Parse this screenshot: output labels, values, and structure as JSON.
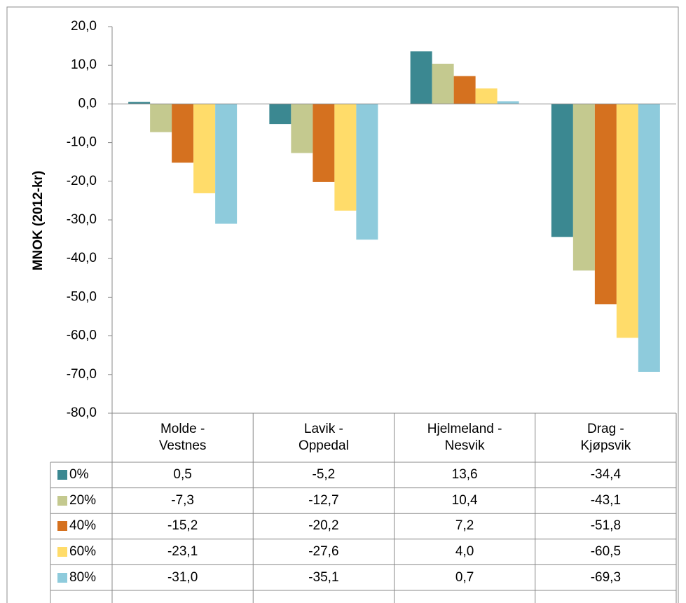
{
  "chart_data": {
    "type": "bar",
    "y_axis_label": "MNOK (2012-kr)",
    "categories": [
      "Molde - Vestnes",
      "Lavik - Oppedal",
      "Hjelmeland - Nesvik",
      "Drag - Kjøpsvik"
    ],
    "series": [
      {
        "name": "0%",
        "color": "#3b8891",
        "values": [
          0.5,
          -5.2,
          13.6,
          -34.4
        ],
        "value_labels": [
          "0,5",
          "-5,2",
          "13,6",
          "-34,4"
        ]
      },
      {
        "name": "20%",
        "color": "#c4c98f",
        "values": [
          -7.3,
          -12.7,
          10.4,
          -43.1
        ],
        "value_labels": [
          "-7,3",
          "-12,7",
          "10,4",
          "-43,1"
        ]
      },
      {
        "name": "40%",
        "color": "#d5711f",
        "values": [
          -15.2,
          -20.2,
          7.2,
          -51.8
        ],
        "value_labels": [
          "-15,2",
          "-20,2",
          "7,2",
          "-51,8"
        ]
      },
      {
        "name": "60%",
        "color": "#ffdc6a",
        "values": [
          -23.1,
          -27.6,
          4.0,
          -60.5
        ],
        "value_labels": [
          "-23,1",
          "-27,6",
          "4,0",
          "-60,5"
        ]
      },
      {
        "name": "80%",
        "color": "#8ecbdc",
        "values": [
          -31.0,
          -35.1,
          0.7,
          -69.3
        ],
        "value_labels": [
          "-31,0",
          "-35,1",
          "0,7",
          "-69,3"
        ]
      }
    ],
    "ylim": [
      -80,
      20
    ],
    "yticks": [
      {
        "value": -80,
        "label": "-80,0"
      },
      {
        "value": -70,
        "label": "-70,0"
      },
      {
        "value": -60,
        "label": "-60,0"
      },
      {
        "value": -50,
        "label": "-50,0"
      },
      {
        "value": -40,
        "label": "-40,0"
      },
      {
        "value": -30,
        "label": "-30,0"
      },
      {
        "value": -20,
        "label": "-20,0"
      },
      {
        "value": -10,
        "label": "-10,0"
      },
      {
        "value": 0,
        "label": "0,0"
      },
      {
        "value": 10,
        "label": "10,0"
      },
      {
        "value": 20,
        "label": "20,0"
      }
    ],
    "grid": false
  }
}
